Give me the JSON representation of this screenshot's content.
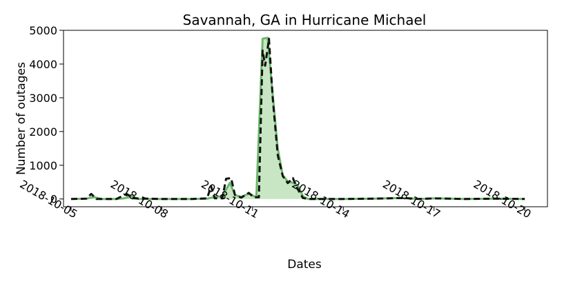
{
  "chart_data": {
    "type": "line",
    "title": "Savannah, GA in Hurricane Michael",
    "xlabel": "Dates",
    "ylabel": "Number of outages",
    "x_ticks": [
      "2018-10-05",
      "2018-10-08",
      "2018-10-11",
      "2018-10-14",
      "2018-10-17",
      "2018-10-20"
    ],
    "y_ticks": [
      0,
      1000,
      2000,
      3000,
      4000,
      5000
    ],
    "xlim": [
      "2018-10-04T18:00",
      "2018-10-20T18:00"
    ],
    "ylim": [
      -230,
      5000
    ],
    "grid": false,
    "legend": "none",
    "colors": {
      "area_fill": "#c8e6c3",
      "area_line": "#6ab86a",
      "dashed_line": "#111111"
    },
    "series": [
      {
        "style": "solid-filled",
        "points": [
          [
            "2018-10-05T00:00",
            0
          ],
          [
            "2018-10-05T12:00",
            10
          ],
          [
            "2018-10-05T18:00",
            60
          ],
          [
            "2018-10-06T00:00",
            0
          ],
          [
            "2018-10-06T12:00",
            0
          ],
          [
            "2018-10-06T18:00",
            20
          ],
          [
            "2018-10-07T00:00",
            80
          ],
          [
            "2018-10-07T06:00",
            0
          ],
          [
            "2018-10-08T00:00",
            0
          ],
          [
            "2018-10-09T00:00",
            0
          ],
          [
            "2018-10-09T12:00",
            10
          ],
          [
            "2018-10-09T18:00",
            60
          ],
          [
            "2018-10-10T00:00",
            80
          ],
          [
            "2018-10-10T06:00",
            480
          ],
          [
            "2018-10-10T10:00",
            120
          ],
          [
            "2018-10-10T15:00",
            60
          ],
          [
            "2018-10-10T21:00",
            160
          ],
          [
            "2018-10-11T03:00",
            50
          ],
          [
            "2018-10-11T08:00",
            4750
          ],
          [
            "2018-10-11T12:00",
            4780
          ],
          [
            "2018-10-11T15:00",
            3500
          ],
          [
            "2018-10-11T20:00",
            1500
          ],
          [
            "2018-10-12T00:00",
            700
          ],
          [
            "2018-10-12T04:00",
            520
          ],
          [
            "2018-10-12T08:00",
            480
          ],
          [
            "2018-10-12T12:00",
            400
          ],
          [
            "2018-10-12T16:00",
            80
          ],
          [
            "2018-10-12T20:00",
            0
          ],
          [
            "2018-10-13T12:00",
            0
          ],
          [
            "2018-10-14T00:00",
            0
          ],
          [
            "2018-10-15T00:00",
            10
          ],
          [
            "2018-10-16T00:00",
            30
          ],
          [
            "2018-10-16T12:00",
            0
          ],
          [
            "2018-10-17T00:00",
            20
          ],
          [
            "2018-10-18T00:00",
            0
          ],
          [
            "2018-10-19T00:00",
            10
          ],
          [
            "2018-10-20T00:00",
            0
          ]
        ]
      },
      {
        "style": "dashed",
        "points": [
          [
            "2018-10-05T00:00",
            0
          ],
          [
            "2018-10-05T12:00",
            10
          ],
          [
            "2018-10-05T16:00",
            150
          ],
          [
            "2018-10-05T20:00",
            0
          ],
          [
            "2018-10-06T12:00",
            0
          ],
          [
            "2018-10-06T20:00",
            150
          ],
          [
            "2018-10-07T02:00",
            20
          ],
          [
            "2018-10-08T00:00",
            0
          ],
          [
            "2018-10-09T00:00",
            0
          ],
          [
            "2018-10-09T12:00",
            20
          ],
          [
            "2018-10-09T15:00",
            380
          ],
          [
            "2018-10-09T18:00",
            20
          ],
          [
            "2018-10-10T00:00",
            20
          ],
          [
            "2018-10-10T03:00",
            600
          ],
          [
            "2018-10-10T07:00",
            620
          ],
          [
            "2018-10-10T10:00",
            120
          ],
          [
            "2018-10-10T15:00",
            40
          ],
          [
            "2018-10-10T21:00",
            180
          ],
          [
            "2018-10-11T01:00",
            50
          ],
          [
            "2018-10-11T05:00",
            50
          ],
          [
            "2018-10-11T08:00",
            4400
          ],
          [
            "2018-10-11T10:00",
            3950
          ],
          [
            "2018-10-11T13:00",
            4750
          ],
          [
            "2018-10-11T16:00",
            3000
          ],
          [
            "2018-10-11T20:00",
            1300
          ],
          [
            "2018-10-12T00:00",
            680
          ],
          [
            "2018-10-12T04:00",
            470
          ],
          [
            "2018-10-12T08:00",
            620
          ],
          [
            "2018-10-12T12:00",
            280
          ],
          [
            "2018-10-12T16:00",
            30
          ],
          [
            "2018-10-12T20:00",
            0
          ],
          [
            "2018-10-13T12:00",
            0
          ],
          [
            "2018-10-14T00:00",
            0
          ],
          [
            "2018-10-15T00:00",
            10
          ],
          [
            "2018-10-16T00:00",
            30
          ],
          [
            "2018-10-16T12:00",
            0
          ],
          [
            "2018-10-17T00:00",
            20
          ],
          [
            "2018-10-18T00:00",
            0
          ],
          [
            "2018-10-19T00:00",
            10
          ],
          [
            "2018-10-20T00:00",
            0
          ]
        ]
      }
    ]
  }
}
